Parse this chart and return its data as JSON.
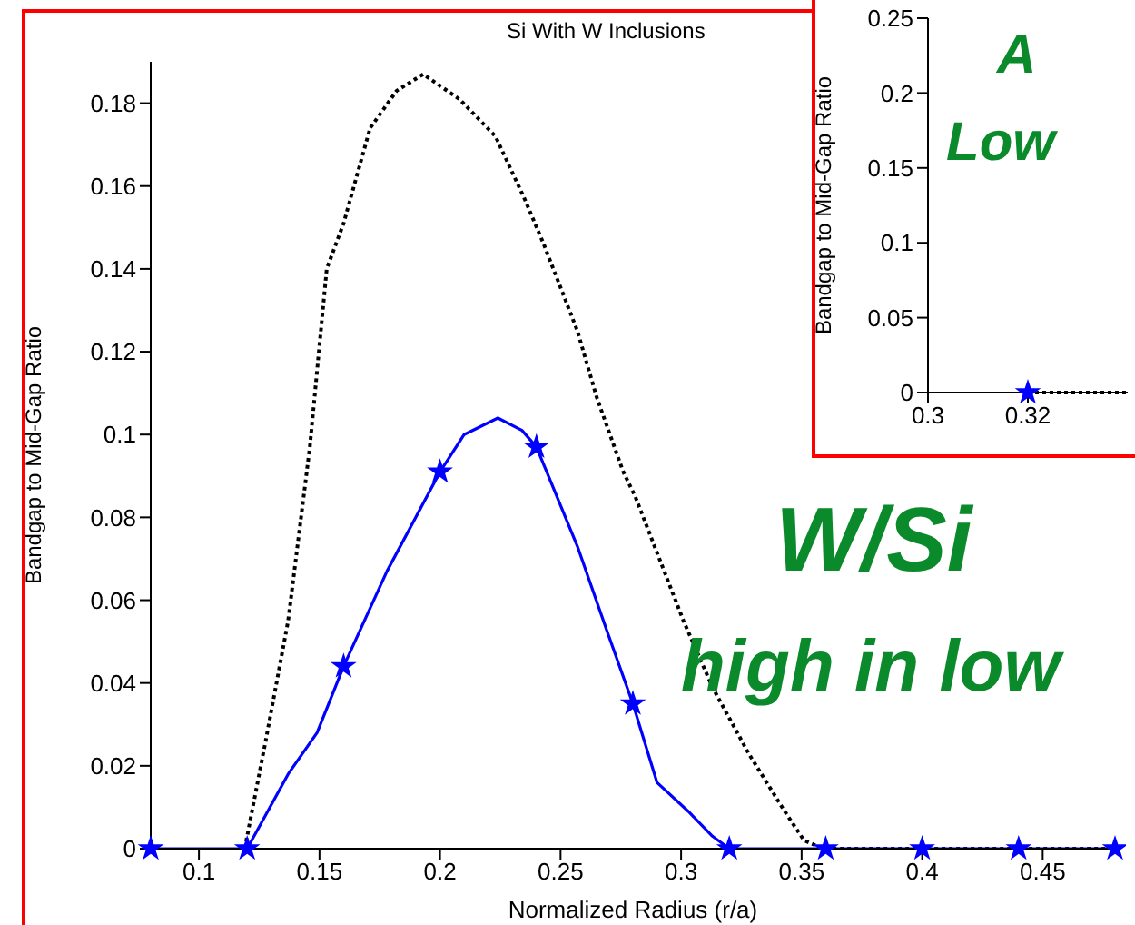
{
  "chart_data": [
    {
      "type": "line",
      "title": "Si With W Inclusions",
      "xlabel": "Normalized Radius (r/a)",
      "ylabel": "Bandgap to Mid-Gap Ratio",
      "xlim": [
        0.08,
        0.48
      ],
      "xticks": [
        0.1,
        0.15,
        0.2,
        0.25,
        0.3,
        0.35,
        0.4,
        0.45
      ],
      "ylim": [
        0,
        0.19
      ],
      "yticks": [
        0,
        0.02,
        0.04,
        0.06,
        0.08,
        0.1,
        0.12,
        0.14,
        0.16,
        0.18
      ],
      "series": [
        {
          "type": "line",
          "color": "#000000",
          "line_style": "dotted",
          "marker": "none",
          "x": [
            0.119,
            0.128,
            0.137,
            0.146,
            0.153,
            0.16,
            0.171,
            0.182,
            0.193,
            0.208,
            0.223,
            0.235,
            0.243,
            0.257,
            0.265,
            0.276,
            0.281,
            0.293,
            0.301,
            0.313,
            0.328,
            0.343,
            0.351,
            0.359,
            0.48
          ],
          "values": [
            0,
            0.027,
            0.055,
            0.097,
            0.14,
            0.151,
            0.174,
            0.183,
            0.187,
            0.181,
            0.172,
            0.157,
            0.146,
            0.125,
            0.109,
            0.091,
            0.085,
            0.067,
            0.055,
            0.039,
            0.023,
            0.009,
            0.002,
            0,
            0
          ]
        },
        {
          "type": "line",
          "color": "#0000ff",
          "line_style": "solid",
          "marker": "none",
          "x": [
            0.08,
            0.12,
            0.137,
            0.149,
            0.16,
            0.178,
            0.2,
            0.21,
            0.224,
            0.234,
            0.24,
            0.257,
            0.269,
            0.28,
            0.29,
            0.303,
            0.313,
            0.32,
            0.48
          ],
          "values": [
            0,
            0,
            0.018,
            0.028,
            0.044,
            0.067,
            0.091,
            0.1,
            0.104,
            0.101,
            0.097,
            0.073,
            0.053,
            0.035,
            0.016,
            0.009,
            0.003,
            0,
            0
          ]
        },
        {
          "type": "scatter",
          "color": "#0000ff",
          "marker": "star",
          "x": [
            0.08,
            0.12,
            0.16,
            0.2,
            0.24,
            0.28,
            0.32,
            0.36,
            0.4,
            0.44,
            0.48
          ],
          "values": [
            0,
            0,
            0.044,
            0.091,
            0.097,
            0.035,
            0,
            0,
            0,
            0,
            0
          ]
        }
      ],
      "annotations": [
        "W/Si",
        "high in low"
      ]
    },
    {
      "type": "line",
      "ylabel": "Bandgap to Mid-Gap Ratio",
      "xlim": [
        0.3,
        0.34
      ],
      "xticks": [
        0.3,
        0.32
      ],
      "ylim": [
        0,
        0.25
      ],
      "yticks": [
        0,
        0.05,
        0.1,
        0.15,
        0.2,
        0.25
      ],
      "series": [
        {
          "type": "line",
          "color": "#000000",
          "line_style": "dotted",
          "marker": "none",
          "x": [
            0.32,
            0.34
          ],
          "values": [
            0,
            0
          ]
        },
        {
          "type": "scatter",
          "color": "#0000ff",
          "marker": "star",
          "x": [
            0.32
          ],
          "values": [
            0
          ]
        }
      ],
      "annotations": [
        "A",
        "Low"
      ]
    }
  ]
}
